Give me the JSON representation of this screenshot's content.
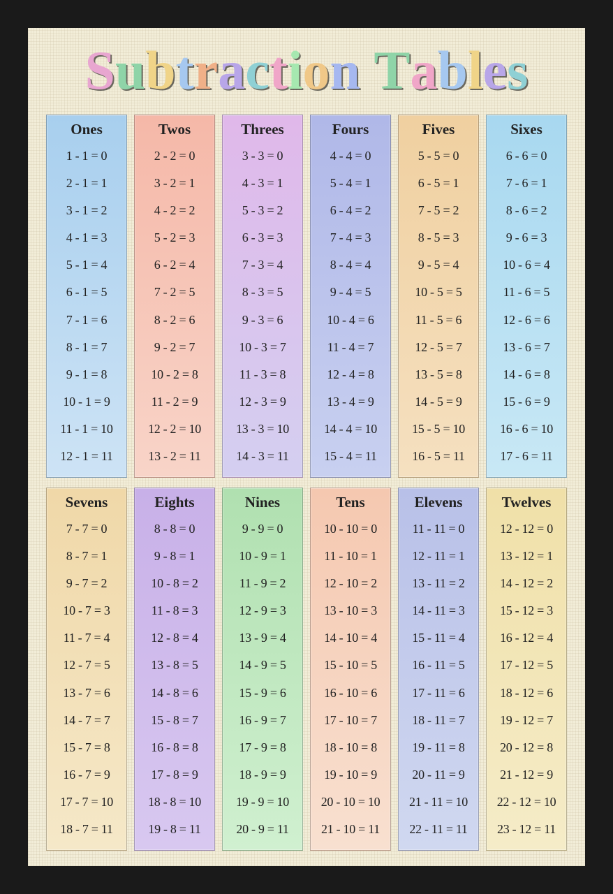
{
  "title_text": "Subtraction Tables",
  "title_letter_colors": [
    "#e8a6d0",
    "#8fd4a8",
    "#f0d488",
    "#a6c8f0",
    "#f0b088",
    "#b8a6e8",
    "#8fd0d4",
    "#f0a6c8",
    "#a6e8b0",
    "#f0c888",
    "#a6b8f0",
    "#ffffff",
    "#8fd4a8",
    "#f0a6c8",
    "#a6c8f0",
    "#f0d488",
    "#b8a6e8",
    "#8fd0d4"
  ],
  "frame_color": "#1a1a1a",
  "background_color": "#f2edd8",
  "text_color": "#222222",
  "columns": [
    {
      "label": "Ones",
      "gradient_top": "#a8cfee",
      "gradient_bottom": "#cde3f5",
      "n": 1
    },
    {
      "label": "Twos",
      "gradient_top": "#f5b8a8",
      "gradient_bottom": "#f8d4c8",
      "n": 2
    },
    {
      "label": "Threes",
      "gradient_top": "#e0b8ea",
      "gradient_bottom": "#d4cff0",
      "n": 3
    },
    {
      "label": "Fours",
      "gradient_top": "#b0b8e8",
      "gradient_bottom": "#c8d0f0",
      "n": 4
    },
    {
      "label": "Fives",
      "gradient_top": "#f0d0a0",
      "gradient_bottom": "#f5e0c0",
      "n": 5
    },
    {
      "label": "Sixes",
      "gradient_top": "#a8d8f0",
      "gradient_bottom": "#c8e8f5",
      "n": 6
    },
    {
      "label": "Sevens",
      "gradient_top": "#f0d8a8",
      "gradient_bottom": "#f5e8c8",
      "n": 7
    },
    {
      "label": "Eights",
      "gradient_top": "#c8b0e8",
      "gradient_bottom": "#d8c8f0",
      "n": 8
    },
    {
      "label": "Nines",
      "gradient_top": "#b0e0b0",
      "gradient_bottom": "#d0f0d0",
      "n": 9
    },
    {
      "label": "Tens",
      "gradient_top": "#f5c8b0",
      "gradient_bottom": "#f8e0d0",
      "n": 10
    },
    {
      "label": "Elevens",
      "gradient_top": "#b8c0e8",
      "gradient_bottom": "#d0d8f0",
      "n": 11
    },
    {
      "label": "Twelves",
      "gradient_top": "#f0e0a8",
      "gradient_bottom": "#f5ecc8",
      "n": 12
    }
  ],
  "rows_per_column": 12,
  "header_fontsize": 21,
  "equation_fontsize": 18,
  "title_fontsize": 78
}
